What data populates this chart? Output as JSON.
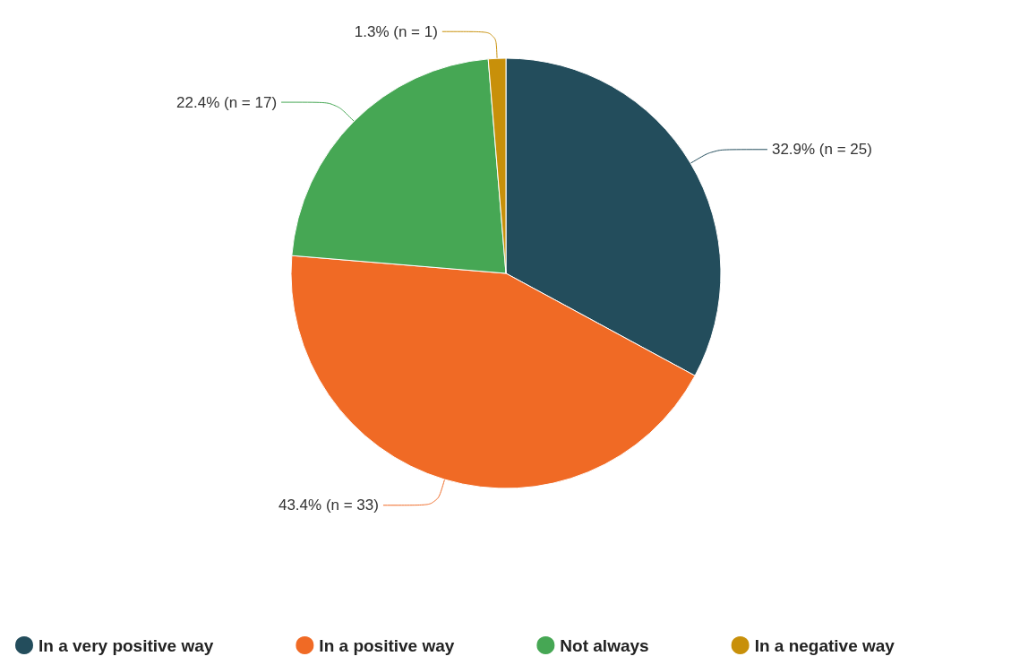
{
  "chart_data": {
    "type": "pie",
    "categories": [
      "In a very positive way",
      "In a positive way",
      "Not always",
      "In a negative way"
    ],
    "values": [
      25,
      33,
      17,
      1
    ],
    "colors": [
      "#234d5c",
      "#f06a25",
      "#46a754",
      "#c8900a"
    ],
    "value_labels": [
      "32.9% (n = 25)",
      "43.4% (n = 33)",
      "22.4% (n = 17)",
      "1.3% (n = 1)"
    ],
    "legend": "bottom"
  }
}
